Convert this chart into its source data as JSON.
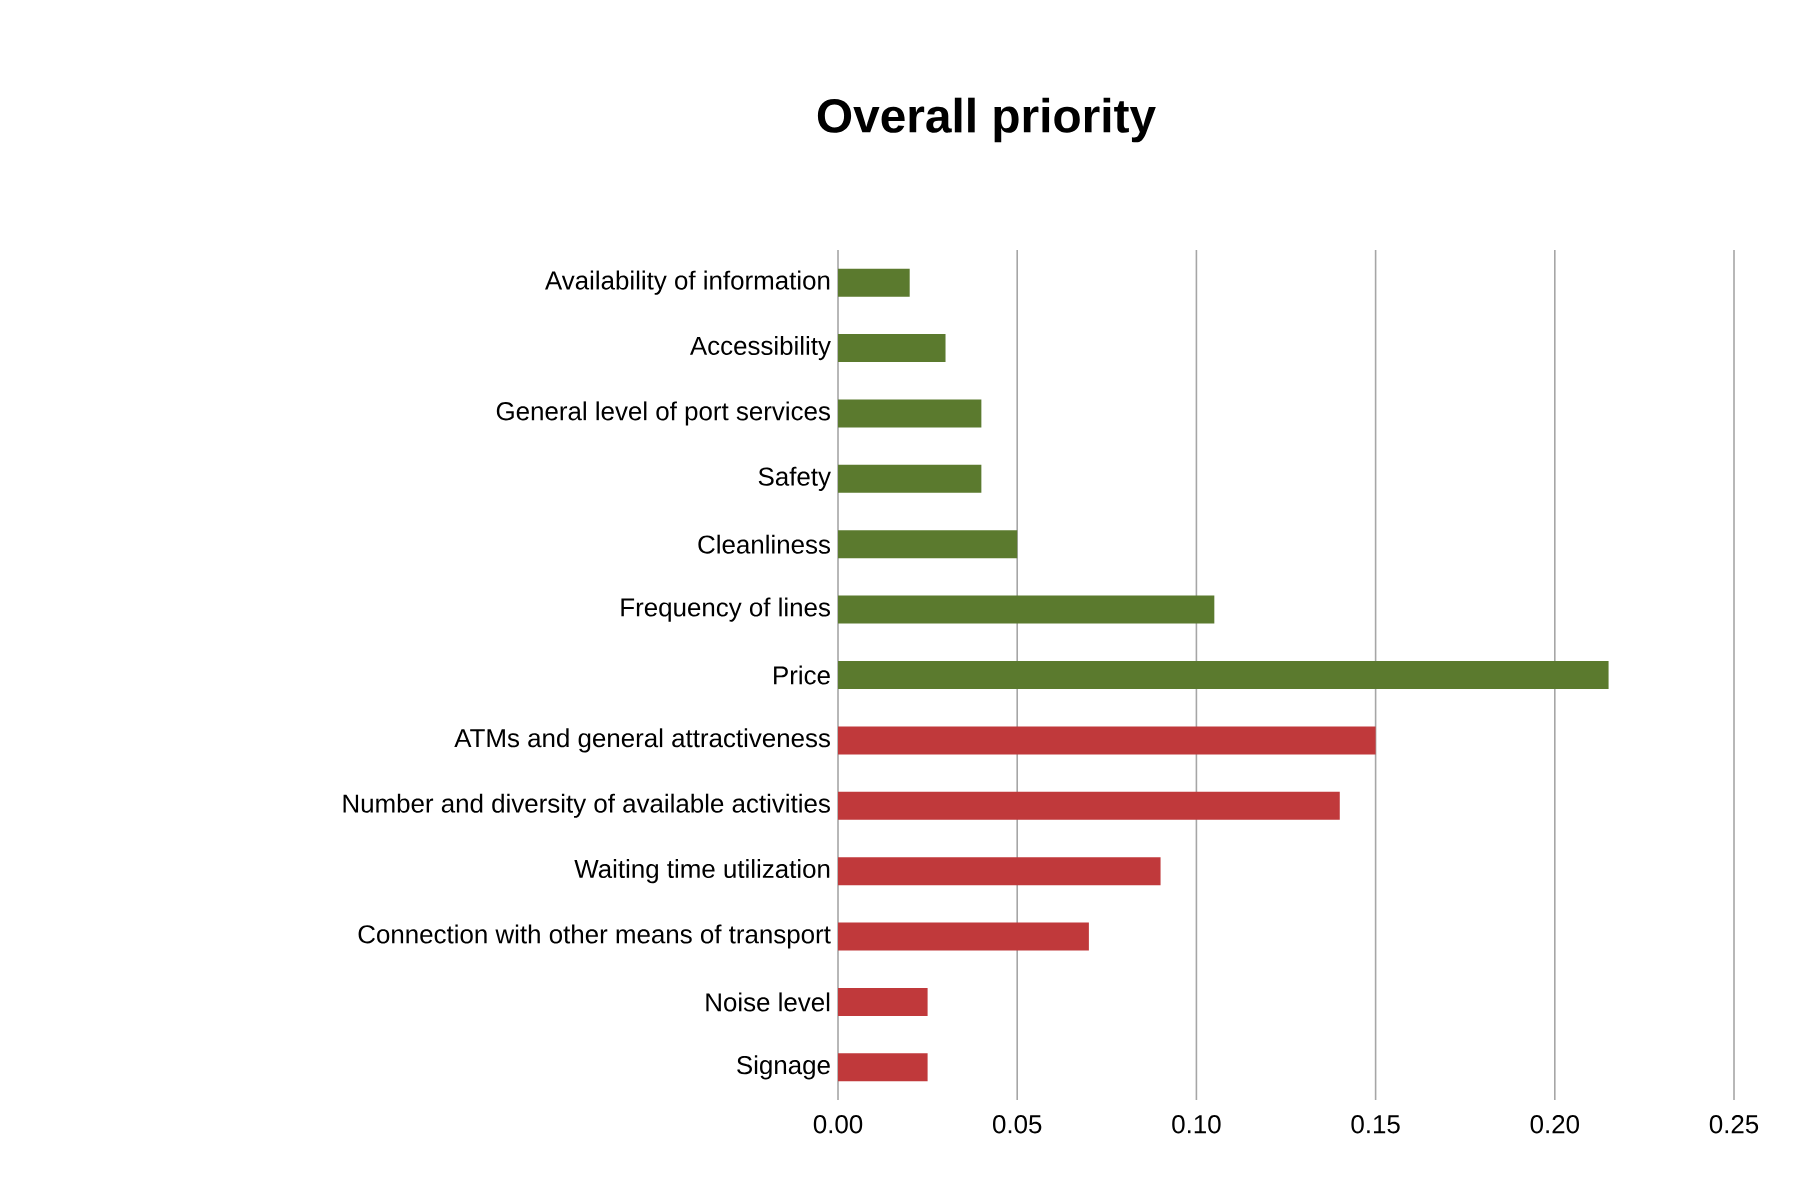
{
  "chart_data": {
    "type": "bar",
    "orientation": "horizontal",
    "title": "Overall priority",
    "categories": [
      "Availability of information",
      "Accessibility",
      "General level of port services",
      "Safety",
      "Cleanliness",
      "Frequency of lines",
      "Price",
      "ATMs and general attractiveness",
      "Number and diversity of available activities",
      "Waiting time utilization",
      "Connection with other means of transport",
      "Noise level",
      "Signage"
    ],
    "values": [
      0.02,
      0.03,
      0.04,
      0.04,
      0.05,
      0.105,
      0.215,
      0.15,
      0.14,
      0.09,
      0.07,
      0.025,
      0.025
    ],
    "colors": [
      "#5b7a2e",
      "#5b7a2e",
      "#5b7a2e",
      "#5b7a2e",
      "#5b7a2e",
      "#5b7a2e",
      "#5b7a2e",
      "#c0393b",
      "#c0393b",
      "#c0393b",
      "#c0393b",
      "#c0393b",
      "#c0393b"
    ],
    "xlim": [
      0,
      0.25
    ],
    "xticks": [
      {
        "value": 0,
        "label": "0.00"
      },
      {
        "value": 0.05,
        "label": "0.05"
      },
      {
        "value": 0.1,
        "label": "0.10"
      },
      {
        "value": 0.15,
        "label": "0.15"
      },
      {
        "value": 0.2,
        "label": "0.20"
      },
      {
        "value": 0.25,
        "label": "0.25"
      }
    ],
    "grid": "x"
  }
}
